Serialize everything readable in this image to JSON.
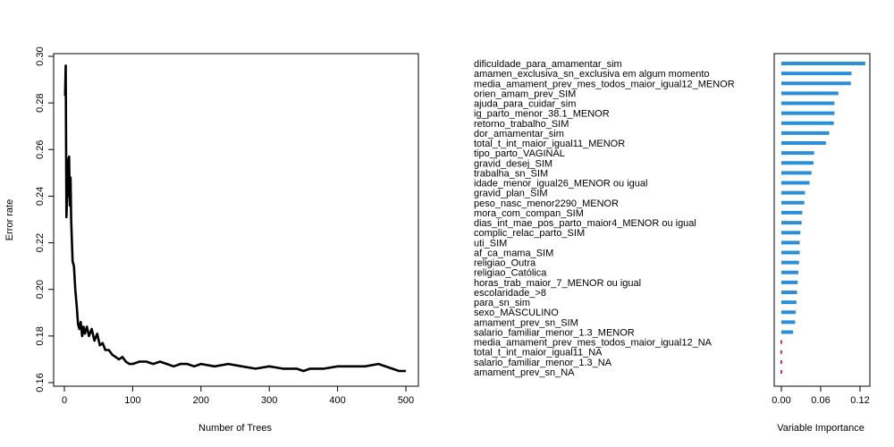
{
  "chart_data": [
    {
      "type": "line",
      "xlabel": "Number of Trees",
      "ylabel": "Error rate",
      "xlim": [
        0,
        520
      ],
      "ylim": [
        0.16,
        0.3
      ],
      "x_ticks": [
        0,
        100,
        200,
        300,
        400,
        500
      ],
      "y_ticks": [
        0.16,
        0.18,
        0.2,
        0.22,
        0.24,
        0.26,
        0.28,
        0.3
      ],
      "series": [
        {
          "color": "#000000",
          "x": [
            1,
            2,
            3,
            4,
            5,
            6,
            7,
            8,
            9,
            10,
            12,
            14,
            16,
            18,
            20,
            22,
            24,
            26,
            28,
            30,
            33,
            36,
            40,
            44,
            48,
            52,
            56,
            60,
            65,
            70,
            75,
            80,
            85,
            90,
            95,
            100,
            110,
            120,
            130,
            140,
            150,
            160,
            170,
            180,
            190,
            200,
            220,
            240,
            260,
            280,
            300,
            320,
            340,
            350,
            360,
            380,
            400,
            420,
            440,
            460,
            480,
            490,
            500
          ],
          "y": [
            0.283,
            0.296,
            0.231,
            0.241,
            0.256,
            0.24,
            0.257,
            0.236,
            0.248,
            0.23,
            0.212,
            0.21,
            0.2,
            0.193,
            0.185,
            0.183,
            0.186,
            0.18,
            0.184,
            0.181,
            0.184,
            0.18,
            0.183,
            0.178,
            0.181,
            0.176,
            0.177,
            0.174,
            0.174,
            0.172,
            0.171,
            0.17,
            0.171,
            0.169,
            0.168,
            0.168,
            0.169,
            0.169,
            0.168,
            0.169,
            0.168,
            0.167,
            0.168,
            0.168,
            0.167,
            0.168,
            0.167,
            0.168,
            0.167,
            0.166,
            0.167,
            0.166,
            0.166,
            0.165,
            0.166,
            0.166,
            0.167,
            0.167,
            0.167,
            0.168,
            0.166,
            0.165,
            0.165
          ]
        }
      ]
    },
    {
      "type": "bar",
      "orientation": "horizontal",
      "xlabel": "Variable Importance",
      "xlim": [
        0,
        0.13
      ],
      "x_ticks": [
        0.0,
        0.06,
        0.12
      ],
      "x_tick_labels": [
        "0.00",
        "0.06",
        "0.12"
      ],
      "colors": {
        "positive": "#2a8fd8",
        "na": "#d12f5d"
      },
      "categories": [
        "dificuldade_para_amamentar_sim",
        "amamen_exclusiva_sn_exclusiva em algum momento",
        "media_amament_prev_mes_todos_maior_igual12_MENOR",
        "orien_amam_prev_SIM",
        "ajuda_para_cuidar_sim",
        "ig_parto_menor_38.1_MENOR",
        "retorno_trabalho_SIM",
        "dor_amamentar_sim",
        "total_t_int_maior_igual11_MENOR",
        "tipo_parto_VAGINAL",
        "gravid_desej_SIM",
        "trabalha_sn_SIM",
        "idade_menor_igual26_MENOR ou igual",
        "gravid_plan_SIM",
        "peso_nasc_menor2290_MENOR",
        "mora_com_compan_SIM",
        "dias_int_mae_pos_parto_maior4_MENOR ou igual",
        "complic_relac_parto_SIM",
        "uti_SIM",
        "af_ca_mama_SIM",
        "religiao_Outra",
        "religiao_Católica",
        "horas_trab_maior_7_MENOR ou igual",
        "escolaridade_>8",
        "para_sn_sim",
        "sexo_MASCULINO",
        "amament_prev_sn_SIM",
        "salario_familiar_menor_1.3_MENOR",
        "media_amament_prev_mes_todos_maior_igual12_NA",
        "total_t_int_maior_igual11_NA",
        "salario_familiar_menor_1.3_NA",
        "amament_prev_sn_NA"
      ],
      "values": [
        0.128,
        0.107,
        0.106,
        0.087,
        0.081,
        0.081,
        0.08,
        0.073,
        0.068,
        0.05,
        0.049,
        0.046,
        0.043,
        0.036,
        0.035,
        0.032,
        0.031,
        0.029,
        0.028,
        0.028,
        0.027,
        0.026,
        0.025,
        0.024,
        0.023,
        0.022,
        0.021,
        0.018,
        0.0,
        0.0,
        0.0,
        0.0
      ]
    }
  ]
}
